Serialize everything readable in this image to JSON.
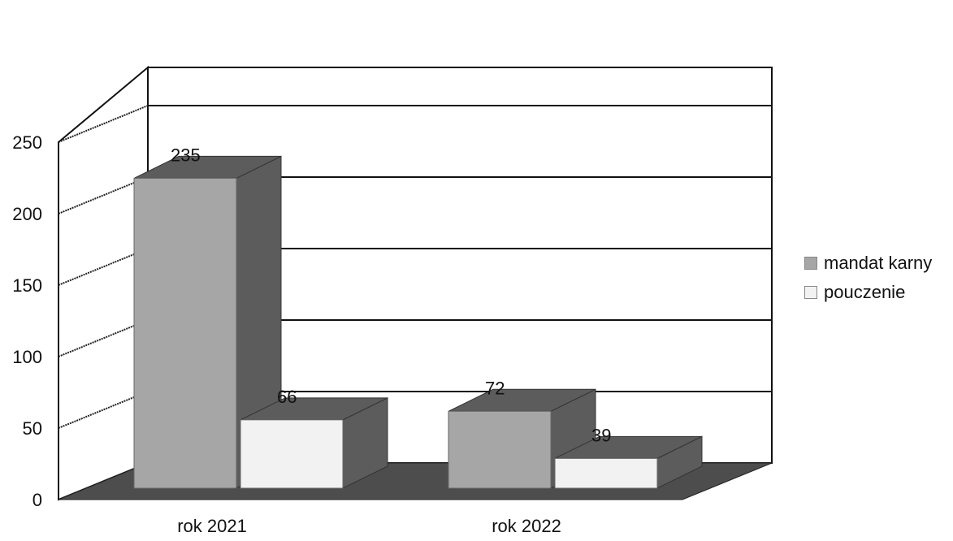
{
  "chart_data": {
    "type": "bar",
    "categories": [
      "rok 2021",
      "rok 2022"
    ],
    "series": [
      {
        "name": "mandat karny",
        "values": [
          235,
          72
        ],
        "color": "#a6a6a6",
        "side_color": "#5c5c5c"
      },
      {
        "name": "pouczenie",
        "values": [
          66,
          39
        ],
        "color": "#f2f2f2",
        "side_color": "#5c5c5c"
      }
    ],
    "ylim": [
      0,
      250
    ],
    "yticks": [
      "0",
      "50",
      "100",
      "150",
      "200",
      "250"
    ],
    "data_labels": [
      [
        "235",
        "72"
      ],
      [
        "66",
        "39"
      ]
    ],
    "grid": true,
    "legend": "right",
    "style": "3d"
  }
}
